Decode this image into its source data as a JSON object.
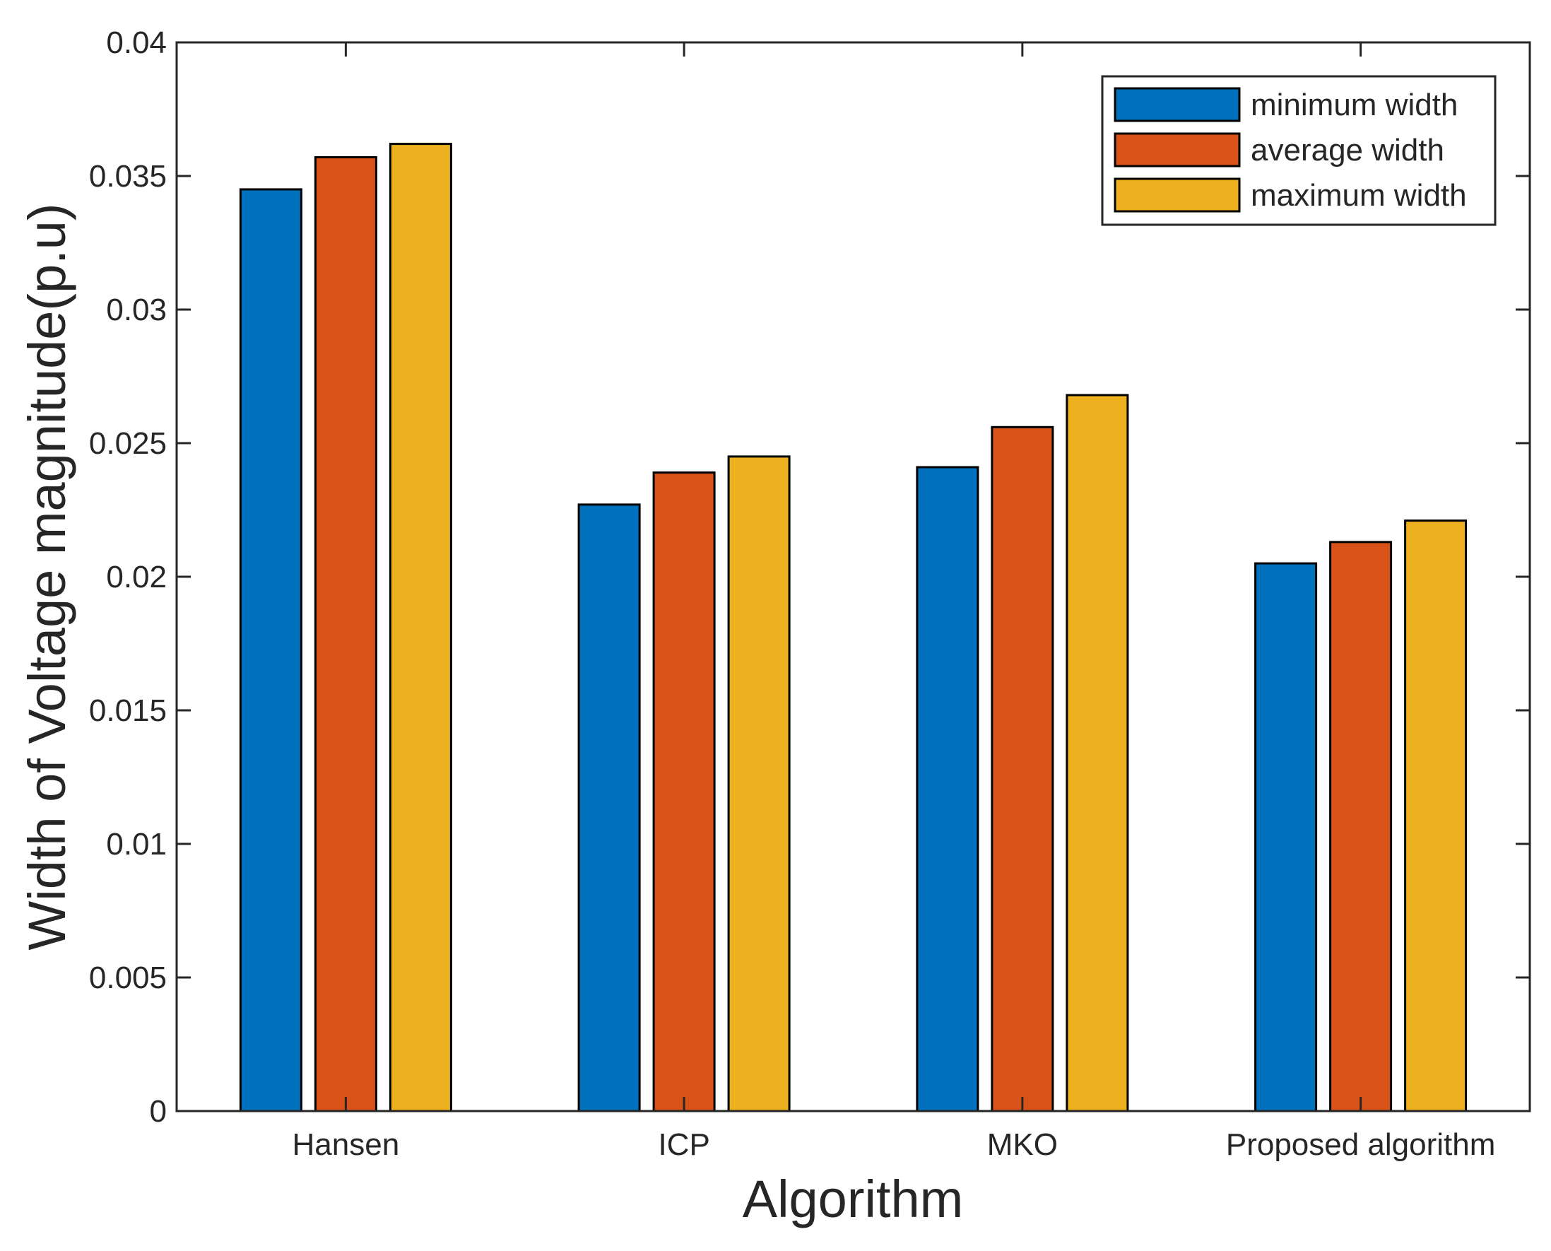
{
  "chart_data": {
    "type": "bar",
    "title": "",
    "xlabel": "Algorithm",
    "ylabel": "Width of Voltage magnitude(p.u)",
    "categories": [
      "Hansen",
      "ICP",
      "MKO",
      "Proposed algorithm"
    ],
    "series": [
      {
        "name": "minimum width",
        "color": "#0072BD",
        "values": [
          0.0345,
          0.0227,
          0.0241,
          0.0205
        ]
      },
      {
        "name": "average width",
        "color": "#D95319",
        "values": [
          0.0357,
          0.0239,
          0.0256,
          0.0213
        ]
      },
      {
        "name": "maximum width",
        "color": "#EDB120",
        "values": [
          0.0362,
          0.0245,
          0.0268,
          0.0221
        ]
      }
    ],
    "ylim": [
      0,
      0.04
    ],
    "yticks": [
      "0",
      "0.005",
      "0.01",
      "0.015",
      "0.02",
      "0.025",
      "0.03",
      "0.035",
      "0.04"
    ],
    "grid": false,
    "legend_position": "top-right"
  }
}
